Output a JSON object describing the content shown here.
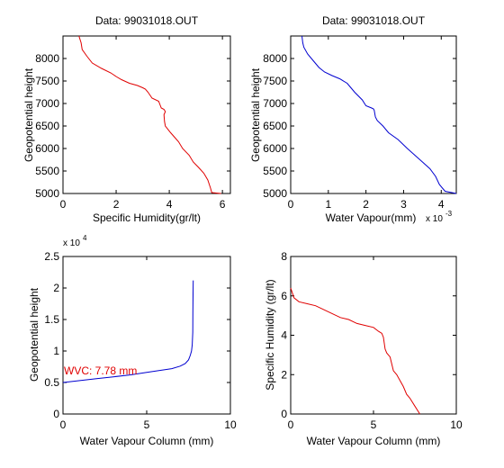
{
  "chart_data": [
    {
      "type": "line",
      "title": "Data: 99031018.OUT",
      "xlabel": "Specific Humidity(gr/lt)",
      "ylabel": "Geopotential height",
      "xlim": [
        0,
        6.3
      ],
      "ylim": [
        5000,
        8500
      ],
      "xticks": [
        0,
        2,
        4,
        6
      ],
      "yticks": [
        5000,
        5500,
        6000,
        6500,
        7000,
        7500,
        8000
      ],
      "series": [
        {
          "color": "#e00000",
          "x": [
            5.95,
            5.6,
            5.55,
            5.45,
            5.3,
            5.1,
            4.9,
            4.75,
            4.5,
            4.35,
            4.2,
            4.05,
            3.85,
            3.82,
            3.8,
            3.85,
            3.8,
            3.7,
            3.6,
            3.35,
            3.2,
            3.1,
            3.0,
            2.8,
            2.5,
            2.2,
            2.0,
            1.8,
            1.45,
            1.1,
            0.9,
            0.72,
            0.68,
            0.6
          ],
          "y": [
            5000,
            5020,
            5120,
            5300,
            5450,
            5580,
            5700,
            5850,
            6000,
            6150,
            6250,
            6350,
            6500,
            6600,
            6750,
            6820,
            6870,
            6900,
            7050,
            7120,
            7250,
            7320,
            7350,
            7400,
            7450,
            7530,
            7600,
            7680,
            7780,
            7900,
            8050,
            8200,
            8350,
            8500
          ]
        }
      ]
    },
    {
      "type": "line",
      "title": "Data: 99031018.OUT",
      "xlabel": "Water Vapour(mm)",
      "ylabel": "Geopotential height",
      "xlim": [
        0,
        4.4
      ],
      "ylim": [
        5000,
        8500
      ],
      "xticks": [
        0,
        1,
        2,
        3,
        4
      ],
      "yticks": [
        5000,
        5500,
        6000,
        6500,
        7000,
        7500,
        8000
      ],
      "x_multiplier": "x 10",
      "x_multiplier_exponent": "-3",
      "series": [
        {
          "color": "#0000d0",
          "x": [
            4.4,
            4.1,
            3.95,
            3.85,
            3.7,
            3.5,
            3.3,
            3.1,
            2.85,
            2.6,
            2.45,
            2.3,
            2.25,
            2.22,
            2.2,
            2.15,
            2.0,
            1.9,
            1.7,
            1.6,
            1.5,
            1.3,
            1.1,
            0.9,
            0.75,
            0.6,
            0.45,
            0.35,
            0.32,
            0.3
          ],
          "y": [
            5000,
            5050,
            5200,
            5380,
            5550,
            5700,
            5850,
            6000,
            6200,
            6350,
            6500,
            6620,
            6700,
            6850,
            6880,
            6900,
            6950,
            7080,
            7250,
            7350,
            7450,
            7550,
            7620,
            7700,
            7800,
            7950,
            8100,
            8250,
            8350,
            8500
          ]
        }
      ]
    },
    {
      "type": "line",
      "xlabel": "Water Vapour Column (mm)",
      "ylabel": "Geopotential height",
      "xlim": [
        0,
        10
      ],
      "ylim": [
        0,
        2.5
      ],
      "xticks": [
        0,
        5,
        10
      ],
      "yticks": [
        0,
        0.5,
        1,
        1.5,
        2,
        2.5
      ],
      "y_multiplier": "x 10",
      "y_multiplier_exponent": "4",
      "annotation": "WVC: 7.78 mm",
      "series": [
        {
          "color": "#0000d0",
          "x": [
            0,
            1,
            2,
            3,
            4,
            5,
            6,
            6.5,
            7.0,
            7.3,
            7.5,
            7.6,
            7.68,
            7.72,
            7.75,
            7.76,
            7.77,
            7.78
          ],
          "y": [
            0.5,
            0.53,
            0.56,
            0.59,
            0.62,
            0.66,
            0.7,
            0.72,
            0.76,
            0.8,
            0.86,
            0.93,
            1.0,
            1.1,
            1.3,
            1.6,
            1.9,
            2.12
          ]
        }
      ]
    },
    {
      "type": "line",
      "xlabel": "Water Vapour Column (mm)",
      "ylabel": "Specific Humidity (gr/lt)",
      "xlim": [
        0,
        10
      ],
      "ylim": [
        0,
        8
      ],
      "xticks": [
        0,
        5,
        10
      ],
      "yticks": [
        0,
        2,
        4,
        6,
        8
      ],
      "series": [
        {
          "color": "#e00000",
          "x": [
            0,
            0.2,
            0.5,
            1.0,
            1.5,
            2.0,
            2.5,
            3.0,
            3.5,
            4.0,
            4.5,
            5.0,
            5.3,
            5.5,
            5.6,
            5.7,
            5.8,
            6.0,
            6.2,
            6.4,
            6.6,
            6.8,
            7.0,
            7.2,
            7.5,
            7.8
          ],
          "y": [
            6.4,
            5.9,
            5.7,
            5.6,
            5.5,
            5.3,
            5.1,
            4.9,
            4.8,
            4.6,
            4.5,
            4.4,
            4.2,
            4.1,
            3.9,
            3.3,
            3.1,
            2.9,
            2.2,
            2.0,
            1.7,
            1.4,
            1.0,
            0.8,
            0.4,
            0.0
          ]
        }
      ]
    }
  ]
}
